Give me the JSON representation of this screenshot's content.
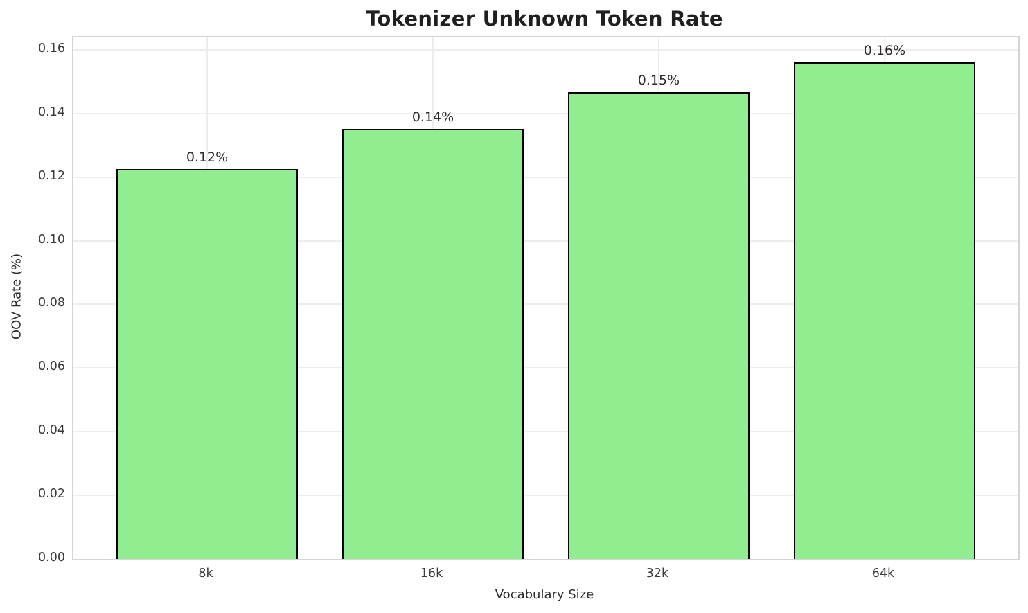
{
  "chart_data": {
    "type": "bar",
    "title": "Tokenizer Unknown Token Rate",
    "xlabel": "Vocabulary Size",
    "ylabel": "OOV Rate (%)",
    "categories": [
      "8k",
      "16k",
      "32k",
      "64k"
    ],
    "values": [
      0.1226,
      0.1351,
      0.1466,
      0.156
    ],
    "bar_labels": [
      "0.12%",
      "0.14%",
      "0.15%",
      "0.16%"
    ],
    "yticks": [
      0.0,
      0.02,
      0.04,
      0.06,
      0.08,
      0.1,
      0.12,
      0.14,
      0.16
    ],
    "ytick_labels": [
      "0.00",
      "0.02",
      "0.04",
      "0.06",
      "0.08",
      "0.10",
      "0.12",
      "0.14",
      "0.16"
    ],
    "ylim": [
      0,
      0.1639
    ],
    "grid": true,
    "legend": null,
    "bar_color": "#90EE90",
    "bar_edge_color": "#000000",
    "grid_color": "#ededed",
    "spine_color": "#d4d4d4",
    "background_color": "#ffffff"
  }
}
